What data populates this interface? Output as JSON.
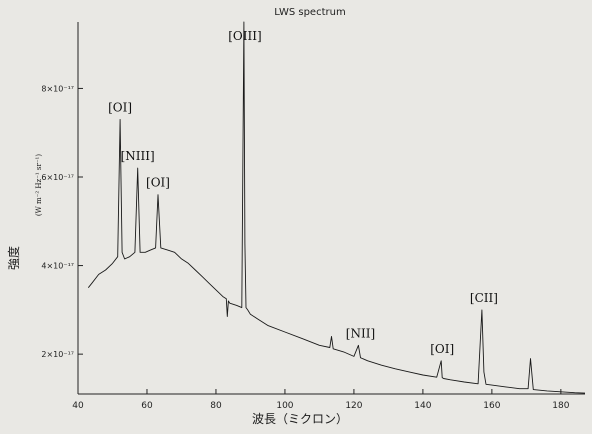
{
  "chart_data": {
    "type": "line",
    "title": "LWS spectrum",
    "xlabel": "波長（ミクロン）",
    "ylabel": "強度",
    "yunit": "(W m⁻² Hz⁻¹ sr⁻¹)",
    "xlim": [
      40,
      187
    ],
    "ylim": [
      1.1e-17,
      9.5e-17
    ],
    "x_ticks": [
      "40",
      "60",
      "80",
      "100",
      "120",
      "140",
      "160",
      "180"
    ],
    "x_tick_values": [
      40,
      60,
      80,
      100,
      120,
      140,
      160,
      180
    ],
    "y_ticks": [
      "2×10⁻¹⁷",
      "4×10⁻¹⁷",
      "6×10⁻¹⁷",
      "8×10⁻¹⁷"
    ],
    "y_tick_values": [
      2e-17,
      4e-17,
      6e-17,
      8e-17
    ],
    "grid": false,
    "series": [
      {
        "x": [
          43,
          44,
          46,
          48,
          50,
          51.5,
          52.2,
          52.8,
          53.5,
          55,
          56.5,
          57.3,
          58,
          59.5,
          61,
          62.5,
          63.2,
          64,
          66,
          68,
          70,
          72,
          74,
          76,
          78,
          80,
          82,
          83,
          83.3,
          83.6,
          84,
          86,
          87.5,
          88.1,
          88.4,
          88.7,
          89.2,
          90,
          92,
          95,
          100,
          105,
          110,
          113,
          113.5,
          114,
          117,
          120,
          121.3,
          121.9,
          122.5,
          124,
          128,
          132,
          136,
          140,
          144,
          145.3,
          145.6,
          146,
          148,
          152,
          156,
          157.1,
          157.7,
          158.3,
          160,
          164,
          168,
          170.5,
          171.2,
          172,
          176,
          180,
          184,
          187
        ],
        "y": [
          3.5e-17,
          3.6e-17,
          3.8e-17,
          3.9e-17,
          4.05e-17,
          4.2e-17,
          7.3e-17,
          4.3e-17,
          4.15e-17,
          4.2e-17,
          4.3e-17,
          6.2e-17,
          4.3e-17,
          4.3e-17,
          4.35e-17,
          4.4e-17,
          5.6e-17,
          4.4e-17,
          4.35e-17,
          4.3e-17,
          4.15e-17,
          4.05e-17,
          3.9e-17,
          3.75e-17,
          3.6e-17,
          3.45e-17,
          3.3e-17,
          3.25e-17,
          2.85e-17,
          3.2e-17,
          3.15e-17,
          3.1e-17,
          3.05e-17,
          9.5e-17,
          4.5e-17,
          3.05e-17,
          3e-17,
          2.9e-17,
          2.8e-17,
          2.65e-17,
          2.5e-17,
          2.35e-17,
          2.2e-17,
          2.15e-17,
          2.4e-17,
          2.12e-17,
          2.05e-17,
          1.95e-17,
          2.2e-17,
          1.92e-17,
          1.9e-17,
          1.85e-17,
          1.75e-17,
          1.67e-17,
          1.6e-17,
          1.53e-17,
          1.48e-17,
          1.85e-17,
          1.47e-17,
          1.45e-17,
          1.42e-17,
          1.37e-17,
          1.33e-17,
          3e-17,
          1.6e-17,
          1.32e-17,
          1.3e-17,
          1.26e-17,
          1.22e-17,
          1.22e-17,
          1.9e-17,
          1.2e-17,
          1.17e-17,
          1.15e-17,
          1.13e-17,
          1.12e-17
        ]
      }
    ],
    "annotations": [
      {
        "text": "[OI]",
        "x": 52.2,
        "y": 7.3e-17
      },
      {
        "text": "[NIII]",
        "x": 57.3,
        "y": 6.2e-17
      },
      {
        "text": "[OI]",
        "x": 63.2,
        "y": 5.6e-17
      },
      {
        "text": "[OIII]",
        "x": 88.4,
        "y": 9.5e-17
      },
      {
        "text": "[NII]",
        "x": 121.9,
        "y": 2.2e-17
      },
      {
        "text": "[OI]",
        "x": 145.6,
        "y": 1.85e-17
      },
      {
        "text": "[CII]",
        "x": 157.7,
        "y": 3e-17
      }
    ]
  }
}
